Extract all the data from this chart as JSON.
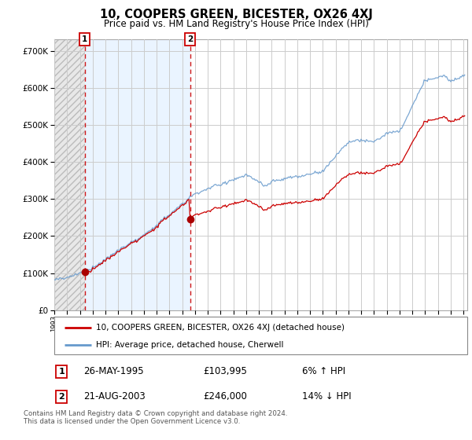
{
  "title": "10, COOPERS GREEN, BICESTER, OX26 4XJ",
  "subtitle": "Price paid vs. HM Land Registry's House Price Index (HPI)",
  "ylabel_ticks": [
    "£0",
    "£100K",
    "£200K",
    "£300K",
    "£400K",
    "£500K",
    "£600K",
    "£700K"
  ],
  "ytick_values": [
    0,
    100000,
    200000,
    300000,
    400000,
    500000,
    600000,
    700000
  ],
  "ylim": [
    0,
    730000
  ],
  "xlim_start": 1993.0,
  "xlim_end": 2025.3,
  "sale1_x": 1995.38,
  "sale1_y": 103995,
  "sale2_x": 2003.63,
  "sale2_y": 246000,
  "legend_line1": "10, COOPERS GREEN, BICESTER, OX26 4XJ (detached house)",
  "legend_line2": "HPI: Average price, detached house, Cherwell",
  "sale1_date": "26-MAY-1995",
  "sale1_price": "£103,995",
  "sale1_pct": "6% ↑ HPI",
  "sale2_date": "21-AUG-2003",
  "sale2_price": "£246,000",
  "sale2_pct": "14% ↓ HPI",
  "footer": "Contains HM Land Registry data © Crown copyright and database right 2024.\nThis data is licensed under the Open Government Licence v3.0.",
  "grid_color": "#cccccc",
  "hpi_line_color": "#6699cc",
  "property_line_color": "#cc0000",
  "dot_color": "#aa0000",
  "hatch_bg": "#e8e8e8",
  "sale_region_bg": "#ddeeff",
  "chart_bg": "#ffffff"
}
